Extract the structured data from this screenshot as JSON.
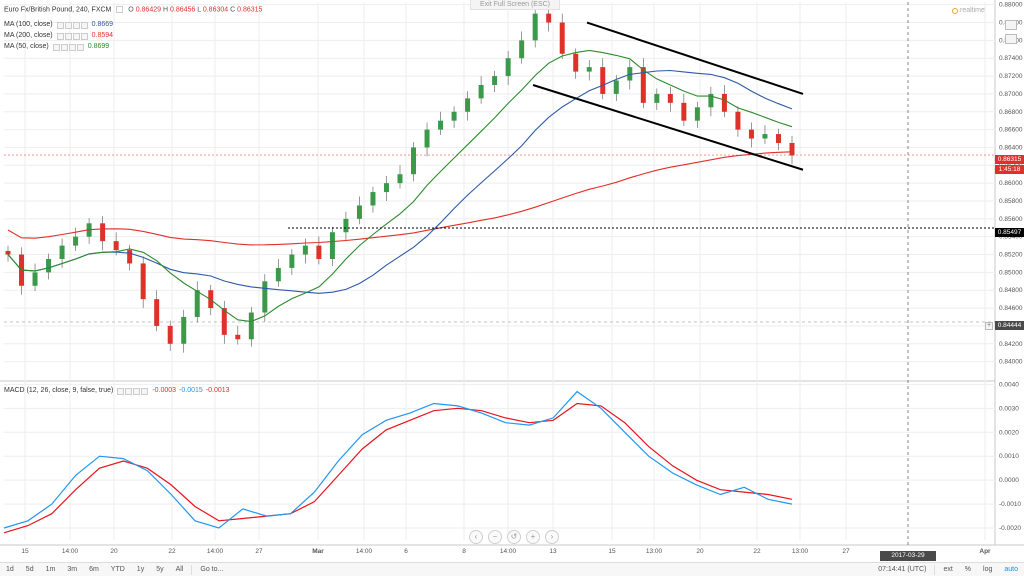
{
  "header": {
    "exit_fullscreen": "Exit Full Screen (ESC)",
    "symbol_title": "Euro Fx/British Pound, 240, FXCM",
    "ohlc": {
      "o_label": "O",
      "o": "0.86429",
      "h_label": "H",
      "h": "0.86456",
      "l_label": "L",
      "l": "0.86304",
      "c_label": "C",
      "c": "0.86315"
    },
    "realtime_label": "realtime"
  },
  "legends": [
    {
      "label": "MA (100, close)",
      "value": "0.8669",
      "color": "#2e5aa8"
    },
    {
      "label": "MA (200, close)",
      "value": "0.8594",
      "color": "#e0302a"
    },
    {
      "label": "MA (50, close)",
      "value": "0.8699",
      "color": "#2e8b2e"
    }
  ],
  "macd_legend": {
    "label": "MACD (12, 26, close, 9, false, true)",
    "v1": "-0.0003",
    "v2": "-0.0015",
    "v3": "-0.0013"
  },
  "price_tags": {
    "last_price": "0.86315",
    "countdown": "1:45:18",
    "level_dotted": "0.85497",
    "level_cursor": "0.84444"
  },
  "time_axis": {
    "labels": [
      "15",
      "14:00",
      "20",
      "22",
      "14:00",
      "27",
      "Mar",
      "14:00",
      "6",
      "8",
      "14:00",
      "13",
      "15",
      "13:00",
      "20",
      "22",
      "13:00",
      "27",
      "Apr"
    ],
    "cursor_date": "2017-03-29 05:00:00"
  },
  "toolbar": {
    "items": [
      "1d",
      "5d",
      "1m",
      "3m",
      "6m",
      "YTD",
      "1y",
      "5y",
      "All",
      "Go to..."
    ],
    "clock": "07:14:41 (UTC)",
    "ext": "ext",
    "pct": "%",
    "log": "log",
    "auto": "auto"
  },
  "colors": {
    "bull": "#3a9a4a",
    "bear": "#e0302a",
    "ma100": "#2e5aa8",
    "ma200": "#e0302a",
    "ma50": "#2e8b2e",
    "macd": "#2196f3",
    "signal": "#e8141c",
    "grid": "#eeeeee"
  },
  "chart_data": [
    {
      "type": "candlestick",
      "title": "Euro Fx/British Pound, 240, FXCM",
      "y_axis_ticks": [
        "0.88000",
        "0.87800",
        "0.87600",
        "0.87400",
        "0.87200",
        "0.87000",
        "0.86800",
        "0.86600",
        "0.86400",
        "0.86200",
        "0.86000",
        "0.85800",
        "0.85600",
        "0.85400",
        "0.85200",
        "0.85000",
        "0.84800",
        "0.84600",
        "0.84400",
        "0.84200",
        "0.84000"
      ],
      "ylim": [
        0.8385,
        0.8803
      ],
      "closes": [
        0.852,
        0.8485,
        0.85,
        0.8515,
        0.853,
        0.854,
        0.8555,
        0.8535,
        0.8525,
        0.851,
        0.847,
        0.844,
        0.842,
        0.845,
        0.848,
        0.846,
        0.843,
        0.8425,
        0.8455,
        0.849,
        0.8505,
        0.852,
        0.853,
        0.8515,
        0.8545,
        0.856,
        0.8575,
        0.859,
        0.86,
        0.861,
        0.864,
        0.866,
        0.867,
        0.868,
        0.8695,
        0.871,
        0.872,
        0.874,
        0.876,
        0.879,
        0.878,
        0.8745,
        0.8725,
        0.873,
        0.87,
        0.8715,
        0.873,
        0.869,
        0.87,
        0.869,
        0.867,
        0.8685,
        0.87,
        0.868,
        0.866,
        0.865,
        0.8655,
        0.8645,
        0.8631
      ],
      "annotations": {
        "channel_upper": [
          [
            0.878,
            0
          ],
          [
            0.87,
            1
          ]
        ],
        "channel_lower": [
          [
            0.871,
            0
          ],
          [
            0.8615,
            1
          ]
        ],
        "horizontal_level": 0.85497
      },
      "series": [
        {
          "name": "MA (100, close)",
          "last": 0.8669
        },
        {
          "name": "MA (200, close)",
          "last": 0.8594
        },
        {
          "name": "MA (50, close)",
          "last": 0.8699
        }
      ]
    },
    {
      "type": "line",
      "title": "MACD (12, 26, close, 9, false, true)",
      "y_axis_ticks": [
        "0.0040",
        "0.0030",
        "0.0020",
        "0.0010",
        "0.0000",
        "-0.0010",
        "-0.0020"
      ],
      "ylim": [
        -0.0025,
        0.0041
      ],
      "series": [
        {
          "name": "MACD",
          "values": [
            -0.002,
            -0.0017,
            -0.001,
            0.0002,
            0.001,
            0.0009,
            0.0004,
            -0.0006,
            -0.0017,
            -0.002,
            -0.0012,
            -0.0015,
            -0.0014,
            -0.0005,
            0.0008,
            0.0019,
            0.0025,
            0.0028,
            0.0032,
            0.0031,
            0.0028,
            0.0024,
            0.0023,
            0.0026,
            0.0037,
            0.003,
            0.002,
            0.001,
            0.0003,
            -0.0002,
            -0.0006,
            -0.0003,
            -0.0008,
            -0.001
          ]
        },
        {
          "name": "Signal",
          "values": [
            -0.0022,
            -0.0019,
            -0.0014,
            -0.0004,
            0.0005,
            0.0008,
            0.0005,
            -0.0002,
            -0.0011,
            -0.0017,
            -0.0016,
            -0.0015,
            -0.0014,
            -0.0009,
            0.0002,
            0.0013,
            0.0021,
            0.0025,
            0.0029,
            0.003,
            0.0029,
            0.0026,
            0.0024,
            0.0025,
            0.0032,
            0.0031,
            0.0024,
            0.0014,
            0.0006,
            0.0,
            -0.0004,
            -0.0005,
            -0.0006,
            -0.0008
          ]
        }
      ]
    }
  ]
}
